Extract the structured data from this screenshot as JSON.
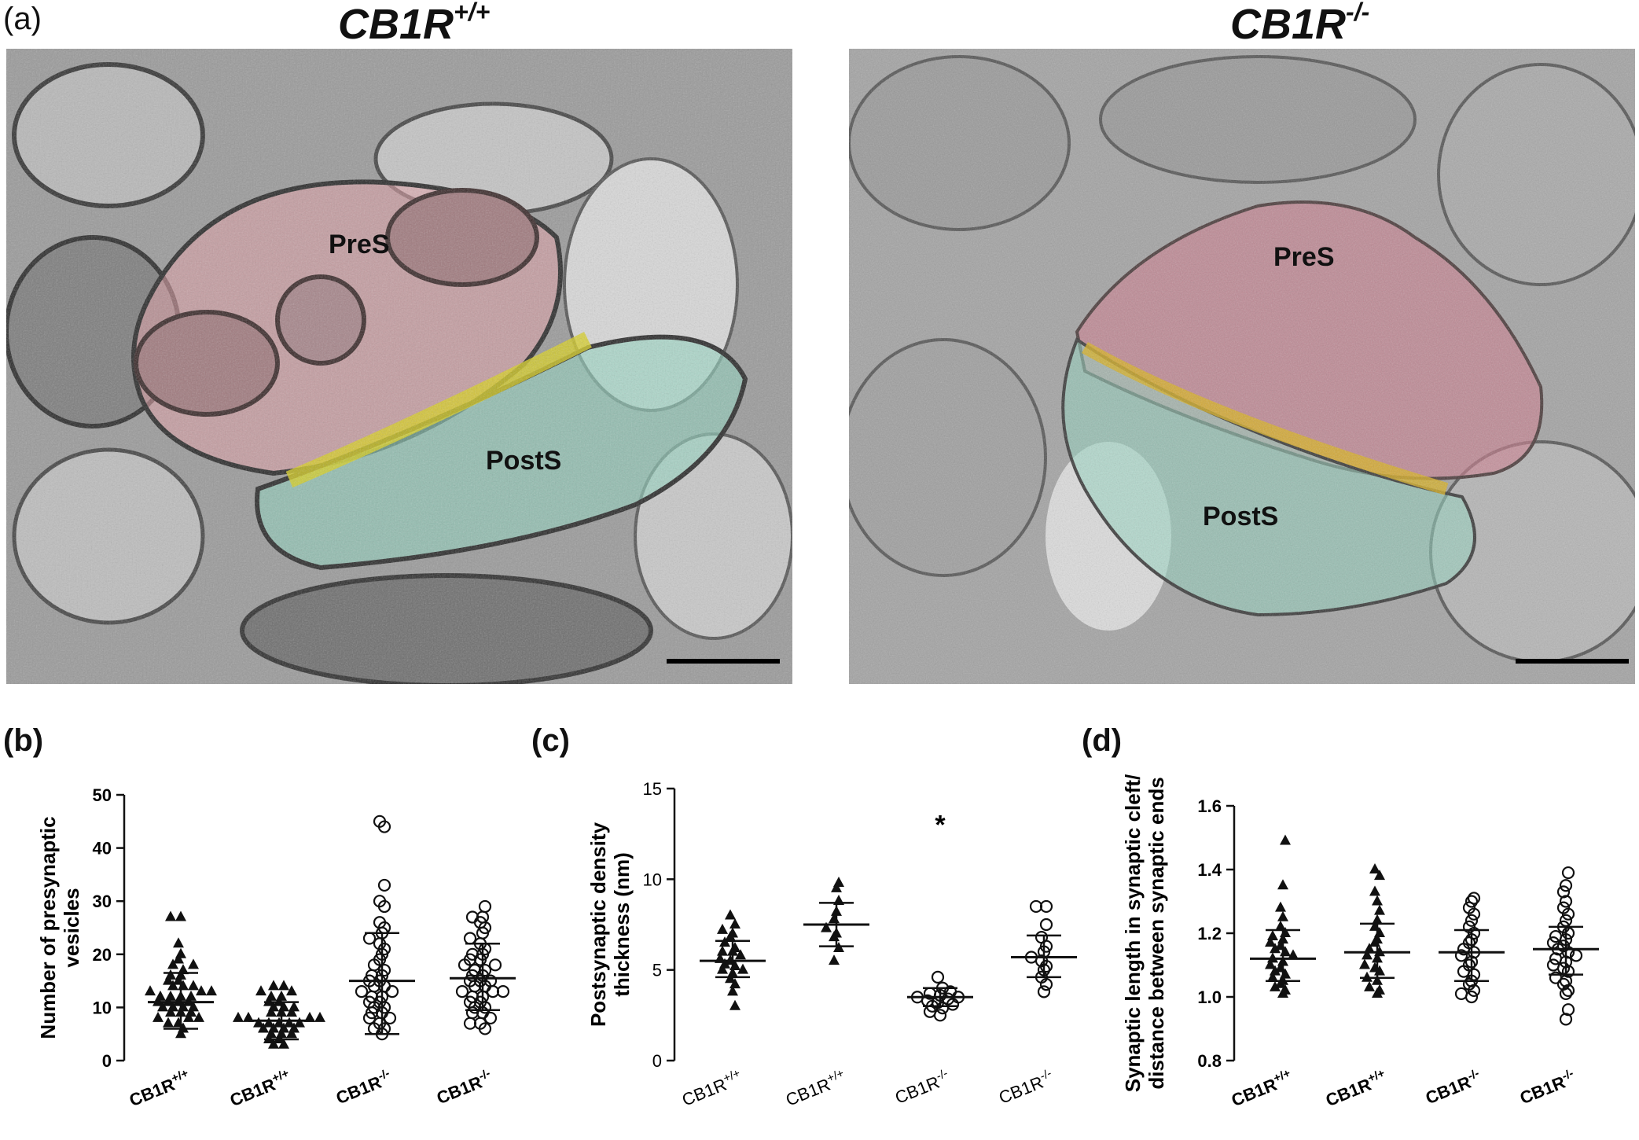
{
  "figure": {
    "panel_a": {
      "letter": "(a)",
      "left_title_base": "CB1R",
      "left_title_sup": "+/+",
      "right_title_base": "CB1R",
      "right_title_sup": "-/-",
      "left_labels": {
        "pre": "PreS",
        "post": "PostS"
      },
      "right_labels": {
        "pre": "PreS",
        "post": "PostS"
      }
    },
    "colors": {
      "presynaptic": "#e8a0a8",
      "postsynaptic": "#8fd6c0",
      "density": "#d8d020",
      "em_background": "#8f8f8f"
    }
  },
  "chart_data": [
    {
      "panel": "(b)",
      "type": "scatter",
      "ylabel_line1": "Number of presynaptic",
      "ylabel_line2": "vesicles",
      "ylim": [
        0,
        50
      ],
      "yticks": [
        "0",
        "10",
        "20",
        "30",
        "40",
        "50"
      ],
      "categories": [
        {
          "base": "CB1R",
          "sup": "+/+"
        },
        {
          "base": "CB1R",
          "sup": "+/+"
        },
        {
          "base": "CB1R",
          "sup": "-/-"
        },
        {
          "base": "CB1R",
          "sup": "-/-"
        }
      ],
      "markers": [
        "triangle",
        "triangle",
        "circle",
        "circle"
      ],
      "means": [
        11,
        7.5,
        15,
        15.5
      ],
      "sd": [
        [
          6,
          16.5
        ],
        [
          4,
          11
        ],
        [
          5,
          24
        ],
        [
          9.5,
          22
        ]
      ],
      "points": [
        [
          5,
          6,
          7,
          7,
          8,
          8,
          8,
          9,
          9,
          9,
          10,
          10,
          10,
          10,
          11,
          11,
          11,
          11,
          12,
          12,
          12,
          12,
          13,
          13,
          13,
          14,
          14,
          14,
          15,
          15,
          16,
          16,
          17,
          18,
          18,
          19,
          20,
          22,
          27,
          27
        ],
        [
          3,
          3,
          4,
          4,
          5,
          5,
          5,
          6,
          6,
          6,
          6,
          7,
          7,
          7,
          7,
          7,
          8,
          8,
          8,
          8,
          9,
          9,
          9,
          10,
          10,
          10,
          11,
          11,
          12,
          12,
          13,
          13,
          14,
          14
        ],
        [
          5,
          6,
          6,
          7,
          8,
          8,
          9,
          9,
          10,
          10,
          11,
          11,
          12,
          12,
          13,
          13,
          14,
          14,
          15,
          15,
          16,
          16,
          17,
          18,
          19,
          20,
          21,
          22,
          23,
          24,
          25,
          26,
          29,
          30,
          33,
          44,
          45
        ],
        [
          6,
          7,
          7,
          8,
          9,
          9,
          10,
          10,
          11,
          11,
          12,
          12,
          13,
          13,
          13,
          14,
          14,
          15,
          15,
          15,
          16,
          16,
          17,
          17,
          18,
          18,
          19,
          19,
          20,
          20,
          21,
          22,
          23,
          24,
          25,
          26,
          27,
          27,
          29
        ]
      ]
    },
    {
      "panel": "(c)",
      "type": "scatter",
      "ylabel_line1": "Postsynaptic density",
      "ylabel_line2": "thickness (nm)",
      "ylim": [
        0,
        15
      ],
      "yticks": [
        "0",
        "5",
        "10",
        "15"
      ],
      "annotation": "*",
      "categories": [
        {
          "base": "CB1R",
          "sup": "+/+"
        },
        {
          "base": "CB1R",
          "sup": "+/+"
        },
        {
          "base": "CB1R",
          "sup": "-/-"
        },
        {
          "base": "CB1R",
          "sup": "-/-"
        }
      ],
      "markers": [
        "triangle",
        "triangle",
        "circle",
        "circle"
      ],
      "means": [
        5.5,
        7.5,
        3.5,
        5.7
      ],
      "sd": [
        [
          4.6,
          6.6
        ],
        [
          6.3,
          8.7
        ],
        [
          3.0,
          4.0
        ],
        [
          4.6,
          6.9
        ]
      ],
      "points": [
        [
          3.0,
          3.8,
          4.2,
          4.5,
          4.8,
          5.0,
          5.0,
          5.2,
          5.3,
          5.5,
          5.6,
          5.8,
          6.0,
          6.0,
          6.2,
          6.5,
          6.8,
          7.0,
          7.2,
          7.5,
          8.0
        ],
        [
          5.5,
          6.2,
          6.8,
          7.0,
          7.3,
          7.8,
          8.2,
          8.8,
          9.5,
          9.8
        ],
        [
          2.5,
          2.7,
          2.9,
          3.0,
          3.1,
          3.2,
          3.3,
          3.4,
          3.5,
          3.5,
          3.6,
          3.7,
          3.8,
          4.0,
          4.6
        ],
        [
          3.8,
          4.2,
          4.6,
          5.0,
          5.2,
          5.5,
          5.7,
          6.0,
          6.3,
          6.8,
          7.5,
          8.5,
          8.5
        ]
      ]
    },
    {
      "panel": "(d)",
      "type": "scatter",
      "ylabel_line1": "Synaptic length in synaptic cleft/",
      "ylabel_line2": "distance between synaptic ends",
      "ylim": [
        0.8,
        1.6
      ],
      "yticks": [
        "0.8",
        "1.0",
        "1.2",
        "1.4",
        "1.6"
      ],
      "categories": [
        {
          "base": "CB1R",
          "sup": "+/+"
        },
        {
          "base": "CB1R",
          "sup": "+/+"
        },
        {
          "base": "CB1R",
          "sup": "-/-"
        },
        {
          "base": "CB1R",
          "sup": "-/-"
        }
      ],
      "markers": [
        "triangle",
        "triangle",
        "circle",
        "circle"
      ],
      "means": [
        1.12,
        1.14,
        1.14,
        1.15
      ],
      "sd": [
        [
          1.05,
          1.21
        ],
        [
          1.06,
          1.23
        ],
        [
          1.05,
          1.21
        ],
        [
          1.07,
          1.22
        ]
      ],
      "points": [
        [
          1.01,
          1.02,
          1.03,
          1.04,
          1.05,
          1.06,
          1.07,
          1.08,
          1.09,
          1.1,
          1.11,
          1.12,
          1.13,
          1.14,
          1.15,
          1.16,
          1.17,
          1.18,
          1.19,
          1.2,
          1.22,
          1.25,
          1.28,
          1.35,
          1.49
        ],
        [
          1.01,
          1.02,
          1.03,
          1.05,
          1.06,
          1.08,
          1.09,
          1.1,
          1.12,
          1.13,
          1.14,
          1.15,
          1.17,
          1.18,
          1.2,
          1.22,
          1.24,
          1.27,
          1.3,
          1.33,
          1.38,
          1.4
        ],
        [
          1.0,
          1.01,
          1.02,
          1.04,
          1.05,
          1.07,
          1.08,
          1.1,
          1.11,
          1.13,
          1.14,
          1.15,
          1.17,
          1.18,
          1.2,
          1.22,
          1.24,
          1.26,
          1.28,
          1.3,
          1.31
        ],
        [
          0.93,
          0.96,
          1.01,
          1.02,
          1.04,
          1.05,
          1.06,
          1.08,
          1.09,
          1.1,
          1.11,
          1.12,
          1.13,
          1.14,
          1.15,
          1.16,
          1.17,
          1.18,
          1.19,
          1.2,
          1.22,
          1.24,
          1.26,
          1.28,
          1.3,
          1.33,
          1.35,
          1.39
        ]
      ]
    }
  ]
}
